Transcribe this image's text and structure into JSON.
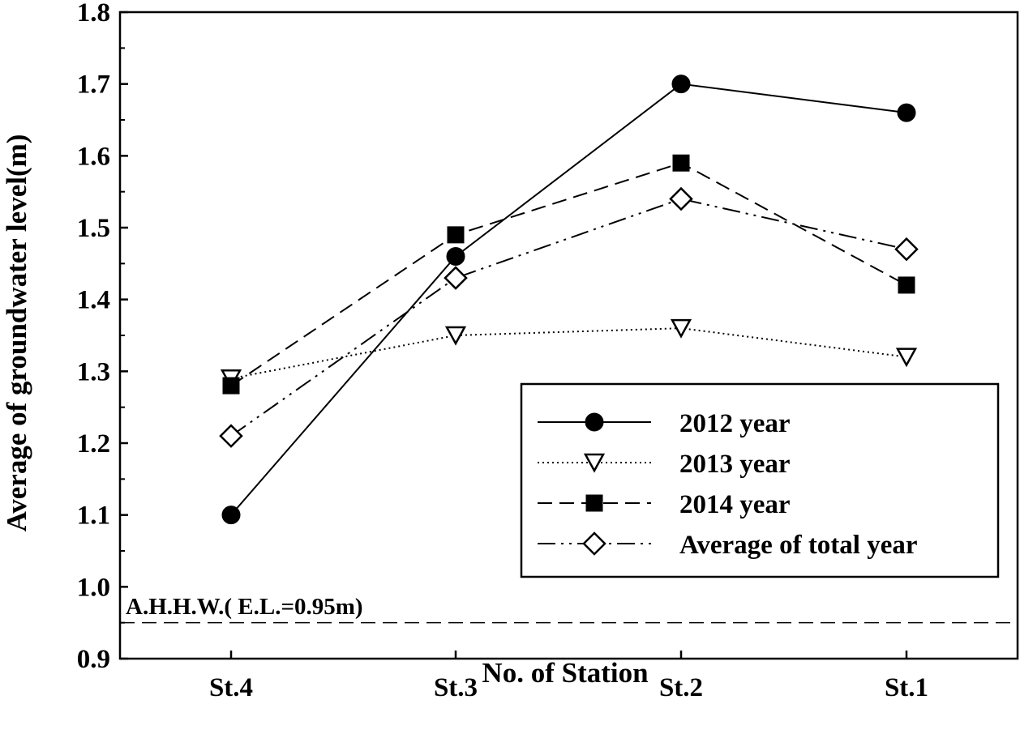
{
  "chart_data": {
    "type": "line",
    "title": "",
    "xlabel": "No. of Station",
    "ylabel": "Average of groundwater level(m)",
    "categories": [
      "St.4",
      "St.3",
      "St.2",
      "St.1"
    ],
    "ylim": [
      0.9,
      1.8
    ],
    "yticks": [
      "0.9",
      "1.0",
      "1.1",
      "1.2",
      "1.3",
      "1.4",
      "1.5",
      "1.6",
      "1.7",
      "1.8"
    ],
    "grid": false,
    "legend_position": "lower-right",
    "series": [
      {
        "name": "2012 year",
        "values": [
          1.1,
          1.46,
          1.7,
          1.66
        ],
        "marker": "filled-circle",
        "line_style": "solid",
        "color": "#000000"
      },
      {
        "name": "2013 year",
        "values": [
          1.29,
          1.35,
          1.36,
          1.32
        ],
        "marker": "open-triangle-down",
        "line_style": "dotted",
        "color": "#000000"
      },
      {
        "name": "2014 year",
        "values": [
          1.28,
          1.49,
          1.59,
          1.42
        ],
        "marker": "filled-square",
        "line_style": "dashed",
        "color": "#000000"
      },
      {
        "name": "Average of total year",
        "values": [
          1.21,
          1.43,
          1.54,
          1.47
        ],
        "marker": "open-diamond",
        "line_style": "dash-dot-dot",
        "color": "#000000"
      }
    ],
    "reference_line": {
      "label": "A.H.H.W.( E.L.=0.95m)",
      "value": 0.95,
      "line_style": "dashed"
    }
  }
}
